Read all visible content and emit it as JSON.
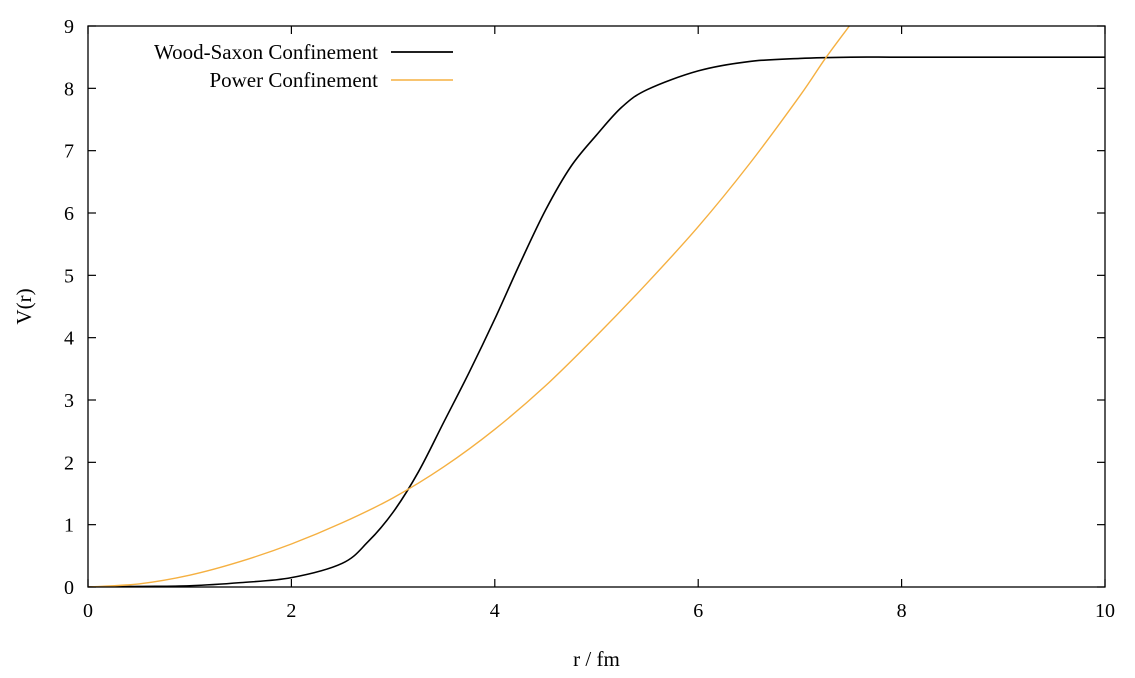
{
  "chart_data": {
    "type": "line",
    "xlabel": "r / fm",
    "ylabel": "V(r)",
    "xlim": [
      0,
      10
    ],
    "ylim": [
      0,
      9
    ],
    "xticks": [
      0,
      2,
      4,
      6,
      8,
      10
    ],
    "yticks": [
      0,
      1,
      2,
      3,
      4,
      5,
      6,
      7,
      8,
      9
    ],
    "grid": false,
    "legend_position": "top-left",
    "series": [
      {
        "name": "Wood-Saxon Confinement",
        "color": "#000000",
        "x": [
          0,
          0.5,
          1,
          1.5,
          2,
          2.5,
          2.75,
          3,
          3.25,
          3.5,
          3.75,
          4,
          4.25,
          4.5,
          4.75,
          5,
          5.25,
          5.5,
          6,
          6.5,
          7,
          7.5,
          8,
          9,
          10
        ],
        "y": [
          0.0,
          0.01,
          0.02,
          0.07,
          0.15,
          0.38,
          0.72,
          1.2,
          1.85,
          2.65,
          3.45,
          4.3,
          5.2,
          6.05,
          6.75,
          7.25,
          7.7,
          7.98,
          8.28,
          8.43,
          8.48,
          8.5,
          8.5,
          8.5,
          8.5
        ]
      },
      {
        "name": "Power Confinement",
        "color": "#f5b041",
        "x": [
          0,
          0.5,
          1,
          1.5,
          2,
          2.5,
          3,
          3.5,
          4,
          4.5,
          5,
          5.5,
          6,
          6.5,
          7,
          7.25,
          7.5
        ],
        "y": [
          0.0,
          0.05,
          0.19,
          0.41,
          0.69,
          1.03,
          1.43,
          1.93,
          2.53,
          3.23,
          4.03,
          4.88,
          5.78,
          6.78,
          7.88,
          8.48,
          9.03
        ]
      }
    ]
  }
}
